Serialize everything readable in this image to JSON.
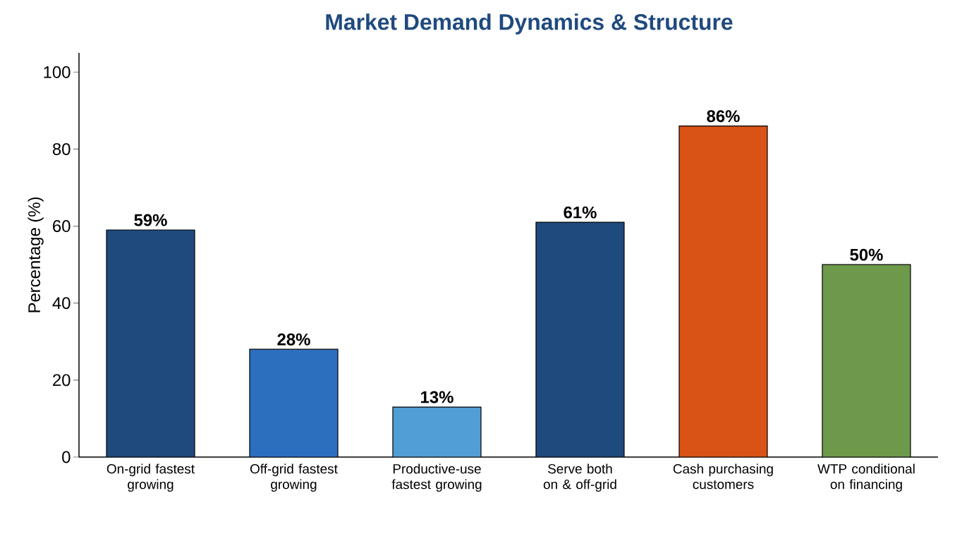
{
  "chart_data": {
    "type": "bar",
    "title": "Market Demand Dynamics & Structure",
    "ylabel": "Percentage (%)",
    "categories": [
      "On-grid fastest growing",
      "Off-grid fastest growing",
      "Productive-use fastest growing",
      "Serve both on & off-grid",
      "Cash purchasing customers",
      "WTP conditional on financing"
    ],
    "values": [
      59,
      28,
      13,
      61,
      86,
      50
    ],
    "value_labels": [
      "59%",
      "28%",
      "13%",
      "61%",
      "86%",
      "50%"
    ],
    "colors": [
      "#1f4a7e",
      "#2c6fbf",
      "#519ed4",
      "#1f4a7e",
      "#d95316",
      "#6e994a"
    ],
    "ylim": [
      0,
      105
    ],
    "yticks": [
      0,
      20,
      40,
      60,
      80,
      100
    ],
    "grid": false
  }
}
